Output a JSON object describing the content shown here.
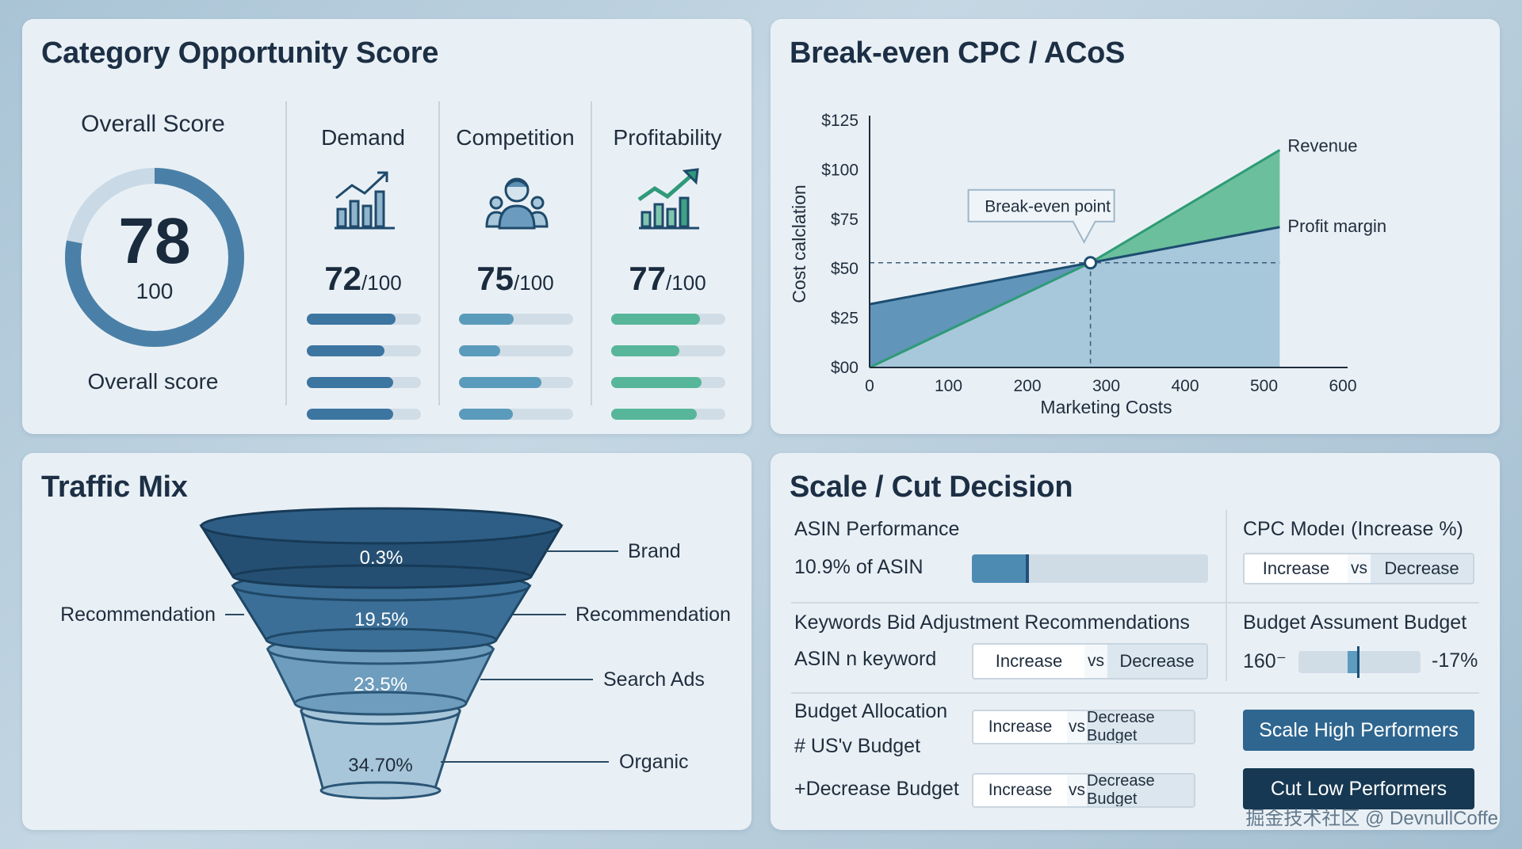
{
  "category": {
    "title": "Category Opportunity Score",
    "overall_label": "Overall Score",
    "overall_score": "78",
    "overall_max": "100",
    "overall_fraction": 0.78,
    "overall_sub": "Overall score",
    "metrics": [
      {
        "label": "Demand",
        "score": "72",
        "max": "/100",
        "icon": "bar-chart-trend-icon",
        "color": "#3d75a1",
        "bars": [
          0.78,
          0.68,
          0.76,
          0.76
        ]
      },
      {
        "label": "Competition",
        "score": "75",
        "max": "/100",
        "icon": "people-icon",
        "color": "#5a9bbb",
        "bars": [
          0.48,
          0.36,
          0.72,
          0.47
        ]
      },
      {
        "label": "Profitability",
        "score": "77",
        "max": "/100",
        "icon": "bar-chart-up-icon",
        "color": "#57b69a",
        "bars": [
          0.78,
          0.6,
          0.79,
          0.75
        ]
      }
    ]
  },
  "breakeven": {
    "title": "Break-even CPC / ACoS",
    "chart_data": {
      "type": "area",
      "xlabel": "Marketing Costs",
      "ylabel": "Cost calclation",
      "xlim": [
        0,
        600
      ],
      "ylim": [
        0,
        125
      ],
      "x_ticks": [
        "0",
        "100",
        "200",
        "300",
        "400",
        "500",
        "600"
      ],
      "y_ticks": [
        "$00",
        "$25",
        "$50",
        "$75",
        "$100",
        "$125"
      ],
      "series": [
        {
          "name": "Revenue",
          "x": [
            0,
            280,
            520
          ],
          "y": [
            0,
            53,
            110
          ]
        },
        {
          "name": "Profit margin",
          "x": [
            0,
            280,
            520
          ],
          "y": [
            32,
            53,
            71
          ]
        }
      ],
      "breakeven_point": {
        "x": 280,
        "y": 53
      },
      "annotation": "Break-even point"
    },
    "colors": {
      "revenue": "#6cbf9c",
      "cost": "#5a8fb5",
      "margin": "#9bc0d6"
    }
  },
  "traffic": {
    "title": "Traffic Mix",
    "layers": [
      {
        "value": "0.3%",
        "right_label": "Brand"
      },
      {
        "value": "19.5%",
        "right_label": "Recommendation",
        "left_label": "Recommendation"
      },
      {
        "value": "23.5%",
        "right_label": "Search Ads"
      },
      {
        "value": "34.70%",
        "right_label": "Organic"
      }
    ],
    "colors": [
      "#254f72",
      "#3b6f97",
      "#6e9dbd",
      "#a8c6d9"
    ]
  },
  "scale": {
    "title": "Scale / Cut Decision",
    "asin_perf_label": "ASIN Performance",
    "asin_perf_value": "10.9% of ASIN",
    "asin_perf_fraction": 0.24,
    "cpc_label": "CPC Modeı (Increase %)",
    "cpc_toggle": {
      "a": "Increase",
      "vs": "vs",
      "b": "Decrease"
    },
    "kw_label": "Keywords Bid Adjustment Recommendations",
    "kw_row_label": "ASIN n keyword",
    "kw_toggle": {
      "a": "Increase",
      "vs": "vs",
      "b": "Decrease"
    },
    "budget_assume_label": "Budget Assument Budget",
    "budget_assume_left": "160⁻",
    "budget_assume_right": "-17%",
    "budget_slider_fraction": 0.5,
    "alloc_label": "Budget Allocation",
    "alloc_sub": "# US'v Budget",
    "alloc_toggle": {
      "a": "Increase",
      "vs": "vs",
      "b": "Decrease Budget"
    },
    "decrease_label": "+Decrease Budget",
    "decrease_toggle": {
      "a": "Increase",
      "vs": "vs",
      "b": "Decrease Budget"
    },
    "scale_btn": "Scale High Performers",
    "cut_btn": "Cut Low Performers"
  },
  "watermark": "掘金技术社区 @ DevnullCoffe"
}
